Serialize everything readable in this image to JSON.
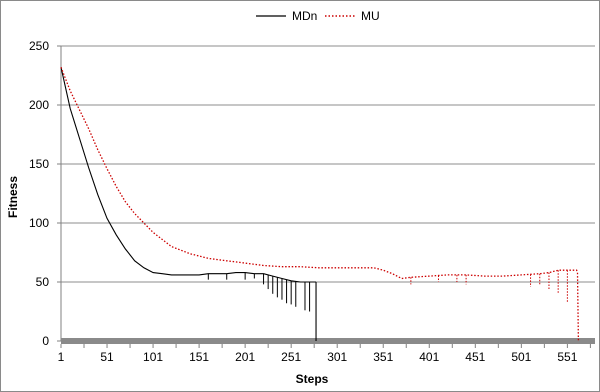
{
  "chart_data": {
    "type": "line",
    "title": "",
    "xlabel": "Steps",
    "ylabel": "Fitness",
    "xlim": [
      1,
      581
    ],
    "ylim": [
      0,
      250
    ],
    "x_ticks": [
      1,
      51,
      101,
      151,
      201,
      251,
      301,
      351,
      401,
      451,
      501,
      551
    ],
    "y_ticks": [
      0,
      50,
      100,
      150,
      200,
      250
    ],
    "grid": "horizontal",
    "legend_position": "top-center",
    "series": [
      {
        "name": "MDn",
        "color": "#000000",
        "style": "solid",
        "points": [
          [
            1,
            232
          ],
          [
            11,
            197
          ],
          [
            21,
            172
          ],
          [
            31,
            147
          ],
          [
            41,
            124
          ],
          [
            51,
            104
          ],
          [
            61,
            90
          ],
          [
            71,
            78
          ],
          [
            81,
            68
          ],
          [
            91,
            62
          ],
          [
            101,
            58
          ],
          [
            111,
            57
          ],
          [
            121,
            56
          ],
          [
            131,
            56
          ],
          [
            141,
            56
          ],
          [
            151,
            56
          ],
          [
            161,
            57
          ],
          [
            171,
            57
          ],
          [
            181,
            57
          ],
          [
            191,
            58
          ],
          [
            201,
            58
          ],
          [
            211,
            57
          ],
          [
            221,
            57
          ],
          [
            231,
            55
          ],
          [
            241,
            53
          ],
          [
            251,
            51
          ],
          [
            261,
            50
          ],
          [
            271,
            50
          ],
          [
            278,
            50
          ]
        ],
        "dips": [
          [
            161,
            52
          ],
          [
            181,
            52
          ],
          [
            201,
            52
          ],
          [
            211,
            53
          ],
          [
            221,
            48
          ],
          [
            226,
            44
          ],
          [
            231,
            40
          ],
          [
            236,
            37
          ],
          [
            241,
            35
          ],
          [
            246,
            32
          ],
          [
            251,
            31
          ],
          [
            256,
            29
          ],
          [
            266,
            26
          ],
          [
            271,
            25
          ]
        ],
        "drop_at": [
          278,
          0
        ]
      },
      {
        "name": "MU",
        "color": "#cc0000",
        "style": "dotted",
        "points": [
          [
            1,
            232
          ],
          [
            11,
            212
          ],
          [
            21,
            196
          ],
          [
            31,
            180
          ],
          [
            41,
            162
          ],
          [
            51,
            146
          ],
          [
            61,
            131
          ],
          [
            71,
            118
          ],
          [
            81,
            108
          ],
          [
            91,
            100
          ],
          [
            101,
            92
          ],
          [
            111,
            86
          ],
          [
            121,
            80
          ],
          [
            131,
            77
          ],
          [
            141,
            74
          ],
          [
            151,
            72
          ],
          [
            161,
            70
          ],
          [
            171,
            69
          ],
          [
            181,
            68
          ],
          [
            191,
            67
          ],
          [
            201,
            66
          ],
          [
            221,
            64
          ],
          [
            241,
            63
          ],
          [
            261,
            63
          ],
          [
            281,
            62
          ],
          [
            301,
            62
          ],
          [
            321,
            62
          ],
          [
            341,
            62
          ],
          [
            351,
            60
          ],
          [
            361,
            57
          ],
          [
            371,
            53
          ],
          [
            381,
            54
          ],
          [
            401,
            55
          ],
          [
            421,
            56
          ],
          [
            441,
            56
          ],
          [
            461,
            55
          ],
          [
            481,
            55
          ],
          [
            501,
            56
          ],
          [
            521,
            57
          ],
          [
            531,
            58
          ],
          [
            541,
            60
          ],
          [
            551,
            60
          ],
          [
            561,
            60
          ],
          [
            562,
            58
          ],
          [
            563,
            0
          ]
        ],
        "dips": [
          [
            381,
            48
          ],
          [
            411,
            50
          ],
          [
            431,
            50
          ],
          [
            441,
            48
          ],
          [
            511,
            46
          ],
          [
            521,
            48
          ],
          [
            531,
            44
          ],
          [
            541,
            40
          ],
          [
            551,
            32
          ]
        ]
      }
    ]
  }
}
